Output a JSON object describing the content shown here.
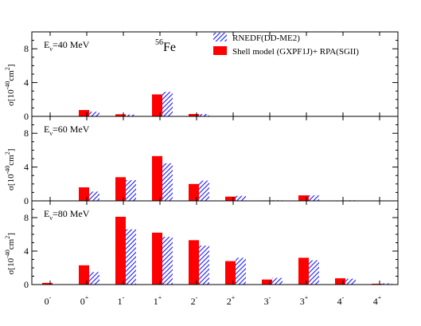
{
  "chart_data": {
    "type": "bar",
    "categories": [
      "0-",
      "0+",
      "1-",
      "1+",
      "2-",
      "2+",
      "3-",
      "3+",
      "4-",
      "4+"
    ],
    "category_labels": [
      {
        "base": "0",
        "sup": "-"
      },
      {
        "base": "0",
        "sup": "+"
      },
      {
        "base": "1",
        "sup": "-"
      },
      {
        "base": "1",
        "sup": "+"
      },
      {
        "base": "2",
        "sup": "-"
      },
      {
        "base": "2",
        "sup": "+"
      },
      {
        "base": "3",
        "sup": "-"
      },
      {
        "base": "3",
        "sup": "+"
      },
      {
        "base": "4",
        "sup": "-"
      },
      {
        "base": "4",
        "sup": "+"
      }
    ],
    "nucleus": {
      "mass": "56",
      "element": "Fe"
    },
    "ylabel": {
      "sigma": "σ[10",
      "exp": "-40",
      "unit": "cm",
      "pow": "2",
      "close": "]"
    },
    "ylim": [
      0,
      10
    ],
    "yticks": [
      "0",
      "4",
      "8"
    ],
    "legend_placement": "top-right",
    "series_meta": [
      {
        "name": "Shell model (GXPF1J)+ RPA(SGII)",
        "color": "#ff0000",
        "pattern": "solid"
      },
      {
        "name": "RNEDF(DD-ME2)",
        "color": "#1a1aff",
        "pattern": "hatched"
      }
    ],
    "panels": [
      {
        "energy": {
          "prefix": "E",
          "sub": "ν",
          "suffix": "=40 MeV"
        },
        "series": [
          {
            "values": [
              0.0,
              0.75,
              0.25,
              2.6,
              0.28,
              0.03,
              0.0,
              0.0,
              0.0,
              0.0
            ]
          },
          {
            "values": [
              0.0,
              0.55,
              0.22,
              2.9,
              0.28,
              0.02,
              0.0,
              0.0,
              0.0,
              0.0
            ]
          }
        ]
      },
      {
        "energy": {
          "prefix": "E",
          "sub": "ν",
          "suffix": "=60 MeV"
        },
        "series": [
          {
            "values": [
              0.05,
              1.6,
              2.8,
              5.3,
              2.0,
              0.5,
              0.05,
              0.65,
              0.05,
              0.0
            ]
          },
          {
            "values": [
              0.0,
              1.1,
              2.45,
              4.45,
              2.4,
              0.6,
              0.07,
              0.65,
              0.07,
              0.0
            ]
          }
        ]
      },
      {
        "energy": {
          "prefix": "E",
          "sub": "ν",
          "suffix": "=80 MeV"
        },
        "series": [
          {
            "values": [
              0.2,
              2.3,
              8.1,
              6.2,
              5.3,
              2.8,
              0.6,
              3.2,
              0.75,
              0.1
            ]
          },
          {
            "values": [
              0.0,
              1.5,
              6.6,
              5.7,
              4.65,
              3.2,
              0.8,
              2.9,
              0.7,
              0.15
            ]
          }
        ]
      }
    ]
  }
}
